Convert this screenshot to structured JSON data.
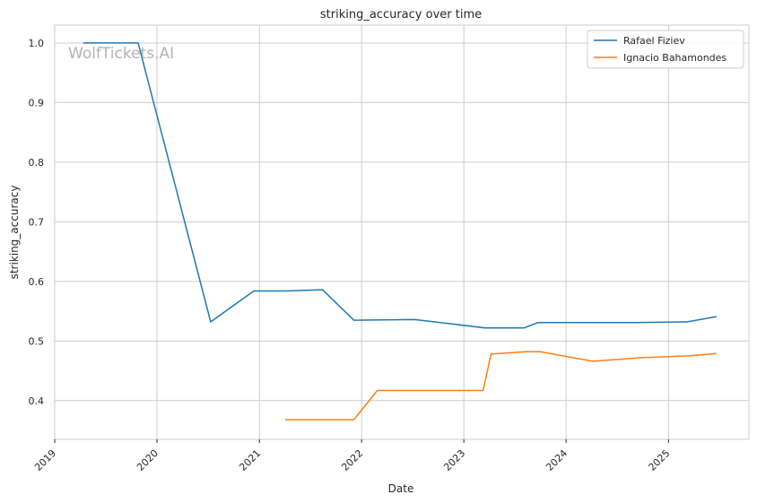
{
  "chart_data": {
    "type": "line",
    "title": "striking_accuracy over time",
    "xlabel": "Date",
    "ylabel": "striking_accuracy",
    "watermark": "WolfTickets.AI",
    "xlim": [
      "2019-01-01",
      "2025-10-15"
    ],
    "ylim": [
      0.335,
      1.03
    ],
    "x_ticks": [
      "2019",
      "2020",
      "2021",
      "2022",
      "2023",
      "2024",
      "2025"
    ],
    "y_ticks": [
      "0.4",
      "0.5",
      "0.6",
      "0.7",
      "0.8",
      "0.9",
      "1.0"
    ],
    "y_tick_values": [
      0.4,
      0.5,
      0.6,
      0.7,
      0.8,
      0.9,
      1.0
    ],
    "grid": true,
    "legend_position": "top-right",
    "series": [
      {
        "name": "Rafael Fiziev",
        "color": "#1f77b4",
        "points": [
          {
            "x": "2019-04-13",
            "y": 1.0
          },
          {
            "x": "2019-10-26",
            "y": 1.0
          },
          {
            "x": "2020-07-11",
            "y": 0.532
          },
          {
            "x": "2020-12-12",
            "y": 0.584
          },
          {
            "x": "2021-04-10",
            "y": 0.584
          },
          {
            "x": "2021-08-14",
            "y": 0.586
          },
          {
            "x": "2021-12-04",
            "y": 0.535
          },
          {
            "x": "2022-07-09",
            "y": 0.536
          },
          {
            "x": "2023-03-18",
            "y": 0.522
          },
          {
            "x": "2023-08-05",
            "y": 0.522
          },
          {
            "x": "2023-09-23",
            "y": 0.531
          },
          {
            "x": "2024-09-07",
            "y": 0.531
          },
          {
            "x": "2025-03-08",
            "y": 0.532
          },
          {
            "x": "2025-06-21",
            "y": 0.541
          }
        ]
      },
      {
        "name": "Ignacio Bahamondes",
        "color": "#ff7f0e",
        "points": [
          {
            "x": "2021-04-03",
            "y": 0.368
          },
          {
            "x": "2021-12-04",
            "y": 0.368
          },
          {
            "x": "2022-02-26",
            "y": 0.417
          },
          {
            "x": "2023-03-11",
            "y": 0.417
          },
          {
            "x": "2023-04-08",
            "y": 0.478
          },
          {
            "x": "2023-08-12",
            "y": 0.482
          },
          {
            "x": "2023-09-30",
            "y": 0.482
          },
          {
            "x": "2024-04-06",
            "y": 0.466
          },
          {
            "x": "2024-09-28",
            "y": 0.472
          },
          {
            "x": "2025-03-15",
            "y": 0.475
          },
          {
            "x": "2025-06-21",
            "y": 0.479
          }
        ]
      }
    ]
  }
}
